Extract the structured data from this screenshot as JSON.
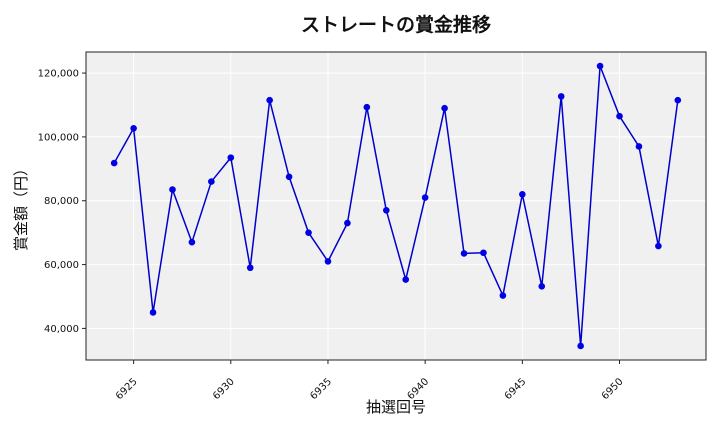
{
  "chart_data": {
    "type": "line",
    "title": "ストレートの賞金推移",
    "xlabel": "抽選回号",
    "ylabel": "賞金額（円）",
    "x": [
      6924,
      6925,
      6926,
      6927,
      6928,
      6929,
      6930,
      6931,
      6932,
      6933,
      6934,
      6935,
      6936,
      6937,
      6938,
      6939,
      6940,
      6941,
      6942,
      6943,
      6944,
      6945,
      6946,
      6947,
      6948,
      6949,
      6950,
      6951,
      6952,
      6953
    ],
    "series": [
      {
        "values": [
          91800,
          102700,
          45000,
          83500,
          67000,
          86000,
          93500,
          59000,
          111500,
          87500,
          70000,
          61000,
          73000,
          109300,
          77000,
          55300,
          81000,
          109000,
          63500,
          63700,
          50300,
          82000,
          53200,
          112700,
          34500,
          122200,
          106500,
          97000,
          65800,
          111500
        ]
      }
    ],
    "x_ticks": [
      6925,
      6930,
      6935,
      6940,
      6945,
      6950
    ],
    "x_tick_labels": [
      "6925",
      "6930",
      "6935",
      "6940",
      "6945",
      "6950"
    ],
    "y_ticks": [
      40000,
      60000,
      80000,
      100000,
      120000
    ],
    "y_tick_labels": [
      "40,000",
      "60,000",
      "80,000",
      "100,000",
      "120,000"
    ],
    "xlim": [
      6922.55,
      6954.45
    ],
    "ylim": [
      30100,
      126600
    ],
    "grid": true,
    "line_color": "#0000cc",
    "marker_color": "#0000e6",
    "plot_bg": "#f0f0f0"
  }
}
